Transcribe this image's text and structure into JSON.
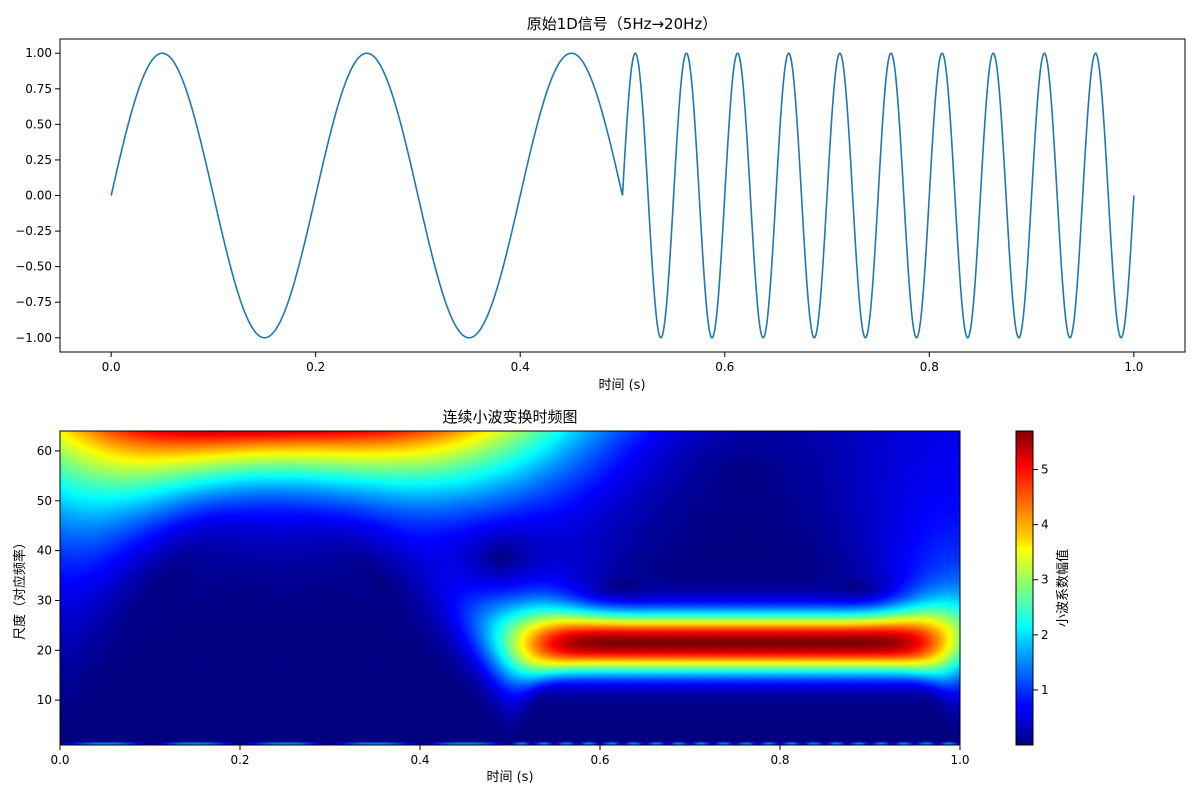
{
  "chart_data": [
    {
      "type": "line",
      "title": "原始1D信号（5Hz→20Hz）",
      "xlabel": "时间 (s)",
      "ylabel": "",
      "xlim": [
        -0.05,
        1.05
      ],
      "ylim": [
        -1.1,
        1.1
      ],
      "x_ticks": [
        0.0,
        0.2,
        0.4,
        0.6,
        0.8,
        1.0
      ],
      "x_tick_labels": [
        "0.0",
        "0.2",
        "0.4",
        "0.6",
        "0.8",
        "1.0"
      ],
      "y_ticks": [
        1.0,
        0.75,
        0.5,
        0.25,
        0.0,
        -0.25,
        -0.5,
        -0.75,
        -1.0
      ],
      "y_tick_labels": [
        "1.00",
        "0.75",
        "0.50",
        "0.25",
        "0.00",
        "−0.25",
        "−0.50",
        "−0.75",
        "−1.00"
      ],
      "grid": false,
      "line_color": "#1f77b4",
      "series": [
        {
          "segments": [
            {
              "x_start": 0.0,
              "x_end": 0.5,
              "frequency_hz": 5
            },
            {
              "x_start": 0.5,
              "x_end": 1.0,
              "frequency_hz": 20
            }
          ]
        }
      ]
    },
    {
      "type": "heatmap",
      "title": "连续小波变换时频图",
      "xlabel": "时间 (s)",
      "ylabel": "尺度（对应频率）",
      "xlim": [
        0.0,
        1.0
      ],
      "ylim": [
        1,
        64
      ],
      "x_ticks": [
        0.0,
        0.2,
        0.4,
        0.6,
        0.8,
        1.0
      ],
      "x_tick_labels": [
        "0.0",
        "0.2",
        "0.4",
        "0.6",
        "0.8",
        "1.0"
      ],
      "y_ticks": [
        10,
        20,
        30,
        40,
        50,
        60
      ],
      "y_tick_labels": [
        "10",
        "20",
        "30",
        "40",
        "50",
        "60"
      ],
      "colormap": "jet",
      "colorbar": {
        "label": "小波系数幅值",
        "range": [
          0,
          5.7
        ],
        "ticks": [
          1,
          2,
          3,
          4,
          5
        ],
        "tick_labels": [
          "1",
          "2",
          "3",
          "4",
          "5"
        ]
      },
      "features": [
        {
          "time_range": [
            0.0,
            0.5
          ],
          "frequency_hz": 5,
          "peak_scale": 64,
          "peak_value": 5.7
        },
        {
          "time_range": [
            0.5,
            1.0
          ],
          "frequency_hz": 20,
          "peak_scale": 21,
          "peak_value": 5.6
        }
      ]
    }
  ]
}
